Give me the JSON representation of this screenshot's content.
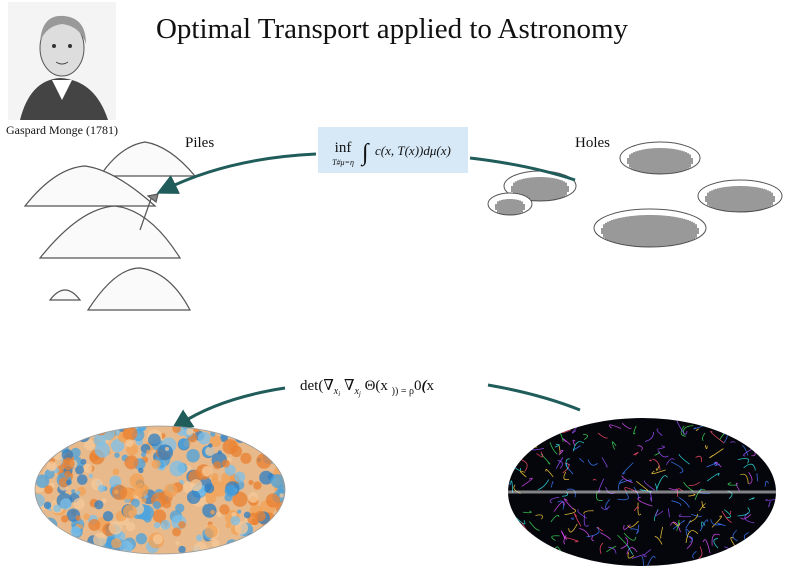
{
  "title": "Optimal Transport applied to Astronomy",
  "portrait": {
    "caption": "Gaspard Monge (1781)"
  },
  "labels": {
    "piles": "Piles",
    "holes": "Holes"
  },
  "formulas": {
    "monge": {
      "operator": "inf",
      "subscript": "T#μ=η",
      "integral": "∫",
      "integrand": "c(x, T(x))dμ(x)"
    },
    "monge_ampere": {
      "parts": [
        "det(∇",
        "x",
        "i",
        " ∇",
        "x",
        "j",
        " Θ(",
        "x",
        ")) = ρ",
        "0",
        "(",
        "x",
        ")."
      ]
    }
  }
}
